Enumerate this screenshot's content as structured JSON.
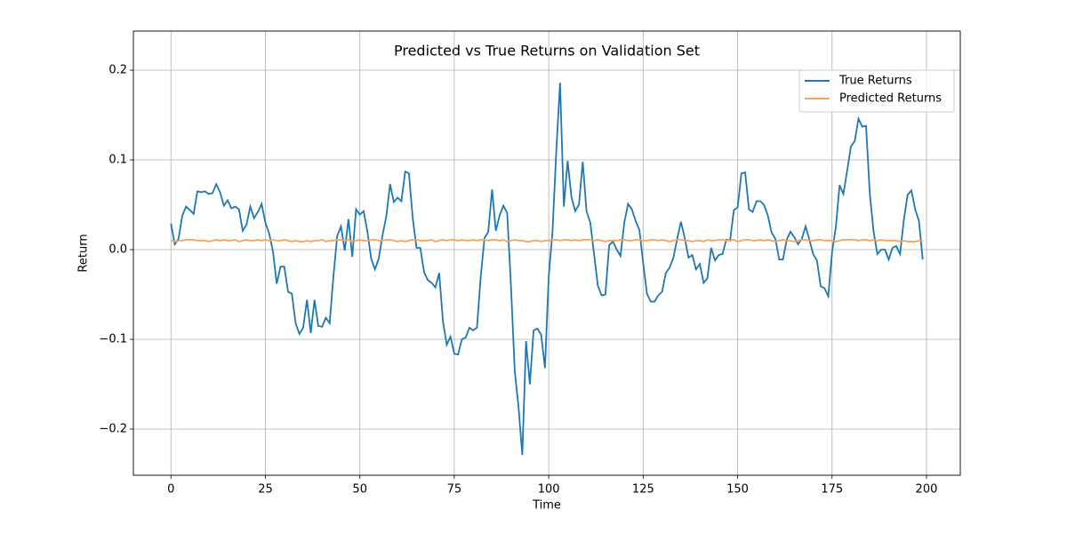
{
  "chart_data": {
    "type": "line",
    "title": "Predicted vs True Returns on Validation Set",
    "xlabel": "Time",
    "ylabel": "Return",
    "x": [
      0,
      1,
      2,
      3,
      4,
      5,
      6,
      7,
      8,
      9,
      10,
      11,
      12,
      13,
      14,
      15,
      16,
      17,
      18,
      19,
      20,
      21,
      22,
      23,
      24,
      25,
      26,
      27,
      28,
      29,
      30,
      31,
      32,
      33,
      34,
      35,
      36,
      37,
      38,
      39,
      40,
      41,
      42,
      43,
      44,
      45,
      46,
      47,
      48,
      49,
      50,
      51,
      52,
      53,
      54,
      55,
      56,
      57,
      58,
      59,
      60,
      61,
      62,
      63,
      64,
      65,
      66,
      67,
      68,
      69,
      70,
      71,
      72,
      73,
      74,
      75,
      76,
      77,
      78,
      79,
      80,
      81,
      82,
      83,
      84,
      85,
      86,
      87,
      88,
      89,
      90,
      91,
      92,
      93,
      94,
      95,
      96,
      97,
      98,
      99,
      100,
      101,
      102,
      103,
      104,
      105,
      106,
      107,
      108,
      109,
      110,
      111,
      112,
      113,
      114,
      115,
      116,
      117,
      118,
      119,
      120,
      121,
      122,
      123,
      124,
      125,
      126,
      127,
      128,
      129,
      130,
      131,
      132,
      133,
      134,
      135,
      136,
      137,
      138,
      139,
      140,
      141,
      142,
      143,
      144,
      145,
      146,
      147,
      148,
      149,
      150,
      151,
      152,
      153,
      154,
      155,
      156,
      157,
      158,
      159,
      160,
      161,
      162,
      163,
      164,
      165,
      166,
      167,
      168,
      169,
      170,
      171,
      172,
      173,
      174,
      175,
      176,
      177,
      178,
      179,
      180,
      181,
      182,
      183,
      184,
      185,
      186,
      187,
      188,
      189,
      190,
      191,
      192,
      193,
      194,
      195,
      196,
      197,
      198,
      199
    ],
    "series": [
      {
        "name": "True Returns",
        "color": "#1f77b4",
        "values": [
          0.029,
          0.006,
          0.012,
          0.038,
          0.048,
          0.044,
          0.04,
          0.065,
          0.064,
          0.065,
          0.062,
          0.063,
          0.073,
          0.064,
          0.049,
          0.055,
          0.046,
          0.048,
          0.045,
          0.021,
          0.028,
          0.048,
          0.035,
          0.042,
          0.051,
          0.03,
          0.018,
          -0.002,
          -0.038,
          -0.019,
          -0.019,
          -0.047,
          -0.049,
          -0.082,
          -0.094,
          -0.087,
          -0.056,
          -0.093,
          -0.056,
          -0.085,
          -0.086,
          -0.076,
          -0.082,
          -0.03,
          0.015,
          0.026,
          -0.001,
          0.034,
          -0.008,
          0.045,
          0.039,
          0.043,
          0.02,
          -0.01,
          -0.022,
          -0.01,
          0.016,
          0.037,
          0.073,
          0.053,
          0.058,
          0.054,
          0.087,
          0.085,
          0.035,
          0.002,
          0.002,
          -0.025,
          -0.034,
          -0.037,
          -0.042,
          -0.026,
          -0.08,
          -0.106,
          -0.097,
          -0.116,
          -0.117,
          -0.1,
          -0.098,
          -0.087,
          -0.09,
          -0.087,
          -0.03,
          0.013,
          0.02,
          0.067,
          0.021,
          0.038,
          0.049,
          0.041,
          -0.04,
          -0.135,
          -0.175,
          -0.229,
          -0.102,
          -0.15,
          -0.09,
          -0.088,
          -0.095,
          -0.132,
          -0.03,
          0.02,
          0.11,
          0.186,
          0.048,
          0.099,
          0.059,
          0.043,
          0.05,
          0.098,
          0.043,
          0.03,
          -0.005,
          -0.04,
          -0.051,
          -0.05,
          0.005,
          0.009,
          0.0,
          -0.007,
          0.03,
          0.051,
          0.045,
          0.032,
          0.022,
          -0.015,
          -0.049,
          -0.058,
          -0.058,
          -0.051,
          -0.047,
          -0.026,
          -0.02,
          -0.009,
          0.012,
          0.031,
          0.013,
          -0.009,
          -0.006,
          -0.022,
          -0.016,
          -0.037,
          -0.032,
          0.002,
          -0.012,
          -0.006,
          -0.005,
          0.011,
          0.01,
          0.044,
          0.047,
          0.085,
          0.086,
          0.045,
          0.042,
          0.054,
          0.054,
          0.05,
          0.038,
          0.019,
          0.012,
          -0.011,
          -0.011,
          0.011,
          0.02,
          0.014,
          0.006,
          0.012,
          0.026,
          0.011,
          -0.005,
          -0.012,
          -0.041,
          -0.043,
          -0.052,
          -0.003,
          0.025,
          0.072,
          0.062,
          0.088,
          0.115,
          0.121,
          0.146,
          0.137,
          0.138,
          0.062,
          0.02,
          -0.005,
          0.0,
          0.0,
          -0.011,
          0.002,
          0.004,
          -0.005,
          0.033,
          0.061,
          0.066,
          0.045,
          0.032,
          -0.011
        ]
      },
      {
        "name": "Predicted Returns",
        "color": "#f9a35a",
        "values": [
          0.01,
          0.009,
          0.01,
          0.01,
          0.011,
          0.011,
          0.011,
          0.01,
          0.01,
          0.01,
          0.009,
          0.01,
          0.011,
          0.01,
          0.011,
          0.01,
          0.01,
          0.011,
          0.009,
          0.01,
          0.011,
          0.01,
          0.01,
          0.011,
          0.01,
          0.011,
          0.01,
          0.011,
          0.01,
          0.01,
          0.011,
          0.01,
          0.009,
          0.01,
          0.009,
          0.009,
          0.01,
          0.009,
          0.01,
          0.01,
          0.011,
          0.009,
          0.01,
          0.01,
          0.011,
          0.011,
          0.01,
          0.011,
          0.009,
          0.01,
          0.011,
          0.01,
          0.01,
          0.011,
          0.011,
          0.01,
          0.01,
          0.011,
          0.011,
          0.01,
          0.009,
          0.01,
          0.009,
          0.01,
          0.011,
          0.011,
          0.01,
          0.01,
          0.01,
          0.011,
          0.009,
          0.01,
          0.011,
          0.01,
          0.011,
          0.011,
          0.01,
          0.011,
          0.01,
          0.01,
          0.011,
          0.01,
          0.011,
          0.011,
          0.01,
          0.011,
          0.011,
          0.01,
          0.011,
          0.009,
          0.01,
          0.011,
          0.01,
          0.01,
          0.009,
          0.009,
          0.01,
          0.01,
          0.009,
          0.01,
          0.01,
          0.011,
          0.011,
          0.01,
          0.011,
          0.011,
          0.01,
          0.011,
          0.01,
          0.011,
          0.011,
          0.011,
          0.01,
          0.011,
          0.01,
          0.009,
          0.01,
          0.01,
          0.01,
          0.011,
          0.011,
          0.01,
          0.01,
          0.011,
          0.011,
          0.01,
          0.01,
          0.011,
          0.011,
          0.01,
          0.011,
          0.01,
          0.009,
          0.01,
          0.011,
          0.011,
          0.01,
          0.01,
          0.009,
          0.01,
          0.01,
          0.009,
          0.011,
          0.01,
          0.01,
          0.011,
          0.011,
          0.01,
          0.01,
          0.011,
          0.009,
          0.01,
          0.011,
          0.011,
          0.01,
          0.01,
          0.011,
          0.01,
          0.011,
          0.01,
          0.009,
          0.01,
          0.011,
          0.01,
          0.01,
          0.009,
          0.01,
          0.011,
          0.011,
          0.01,
          0.01,
          0.011,
          0.011,
          0.01,
          0.01,
          0.01,
          0.009,
          0.01,
          0.011,
          0.011,
          0.011,
          0.011,
          0.01,
          0.011,
          0.011,
          0.01,
          0.011,
          0.01,
          0.011,
          0.01,
          0.01,
          0.01,
          0.01,
          0.009,
          0.01,
          0.009,
          0.009,
          0.009,
          0.01,
          0.01
        ]
      }
    ],
    "xlim": [
      -9.95,
      208.95
    ],
    "xticks": [
      0,
      25,
      50,
      75,
      100,
      125,
      150,
      175,
      200
    ],
    "ylim": [
      -0.2515,
      0.2436
    ],
    "yticks": [
      {
        "value": -0.2,
        "label": "−0.2"
      },
      {
        "value": -0.1,
        "label": "−0.1"
      },
      {
        "value": 0,
        "label": "0.0"
      },
      0.1,
      0.2
    ],
    "grid": true,
    "legend": "upper right"
  }
}
